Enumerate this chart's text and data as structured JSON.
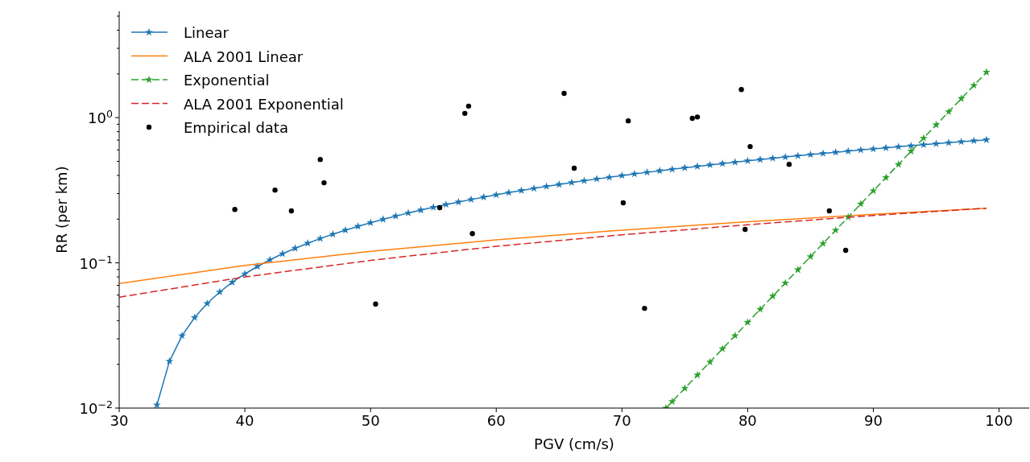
{
  "chart_data": {
    "type": "line",
    "xlabel": "PGV (cm/s)",
    "ylabel": "RR (per km)",
    "log": "y",
    "legend": "top left",
    "grid": false,
    "xlim": [
      30,
      102.4
    ],
    "xticks": [
      30,
      40,
      50,
      60,
      70,
      80,
      90,
      100
    ],
    "ylim": [
      0.01,
      5.4
    ],
    "yticks": [
      {
        "value": 0.01,
        "label": "10$^{−2}$"
      },
      {
        "value": 0.02,
        "label": null
      },
      {
        "value": 0.03,
        "label": null
      },
      {
        "value": 0.04,
        "label": null
      },
      {
        "value": 0.05,
        "label": null
      },
      {
        "value": 0.06,
        "label": null
      },
      {
        "value": 0.07,
        "label": null
      },
      {
        "value": 0.08,
        "label": null
      },
      {
        "value": 0.09,
        "label": null
      },
      {
        "value": 0.1,
        "label": "10$^{−1}$"
      },
      {
        "value": 0.2,
        "label": null
      },
      {
        "value": 0.3,
        "label": null
      },
      {
        "value": 0.4,
        "label": null
      },
      {
        "value": 0.5,
        "label": null
      },
      {
        "value": 0.6,
        "label": null
      },
      {
        "value": 0.7,
        "label": null
      },
      {
        "value": 0.8,
        "label": null
      },
      {
        "value": 0.9,
        "label": null
      },
      {
        "value": 1,
        "label": "10$^{0}$"
      },
      {
        "value": 2,
        "label": null
      },
      {
        "value": 3,
        "label": null
      },
      {
        "value": 4,
        "label": null
      },
      {
        "value": 5,
        "label": null
      }
    ],
    "series": [
      {
        "name": "Linear",
        "type": "line",
        "color": "#1f77b4",
        "marker": "star",
        "line_style": "solid",
        "x": [
          33,
          34,
          35,
          36,
          37,
          38,
          39,
          40,
          41,
          42,
          43,
          44,
          45,
          46,
          47,
          48,
          49,
          50,
          51,
          52,
          53,
          54,
          55,
          56,
          57,
          58,
          59,
          60,
          61,
          62,
          63,
          64,
          65,
          66,
          67,
          68,
          69,
          70,
          71,
          72,
          73,
          74,
          75,
          76,
          77,
          78,
          79,
          80,
          81,
          82,
          83,
          84,
          85,
          86,
          87,
          88,
          89,
          90,
          91,
          92,
          93,
          94,
          95,
          96,
          97,
          98,
          99
        ],
        "values": [
          0.0105,
          0.021,
          0.0315,
          0.042,
          0.0525,
          0.063,
          0.0735,
          0.084,
          0.0945,
          0.105,
          0.1155,
          0.126,
          0.1365,
          0.147,
          0.1575,
          0.168,
          0.1785,
          0.189,
          0.1995,
          0.21,
          0.2205,
          0.231,
          0.2415,
          0.252,
          0.2625,
          0.273,
          0.2835,
          0.294,
          0.3045,
          0.315,
          0.3255,
          0.336,
          0.3465,
          0.357,
          0.3675,
          0.378,
          0.3885,
          0.399,
          0.4095,
          0.42,
          0.4305,
          0.441,
          0.4515,
          0.462,
          0.4725,
          0.483,
          0.4935,
          0.504,
          0.5145,
          0.525,
          0.5355,
          0.546,
          0.5565,
          0.567,
          0.5775,
          0.588,
          0.5985,
          0.609,
          0.6195,
          0.63,
          0.6405,
          0.651,
          0.6615,
          0.672,
          0.6825,
          0.693,
          0.7035
        ]
      },
      {
        "name": "ALA 2001 Linear",
        "type": "line",
        "color": "#ff7f0e",
        "marker": "none",
        "line_style": "solid",
        "x": [
          30,
          40,
          50,
          60,
          70,
          80,
          90,
          99
        ],
        "values": [
          0.072,
          0.096,
          0.12,
          0.144,
          0.168,
          0.192,
          0.216,
          0.2376
        ]
      },
      {
        "name": "Exponential",
        "type": "line",
        "color": "#2ca02c",
        "marker": "star",
        "line_style": "dashed",
        "x": [
          73.5,
          74,
          75,
          76,
          77,
          78,
          79,
          80,
          81,
          82,
          83,
          84,
          85,
          86,
          87,
          88,
          89,
          90,
          91,
          92,
          93,
          94,
          95,
          96,
          97,
          98,
          99
        ],
        "values": [
          0.01,
          0.0111,
          0.01368,
          0.01686,
          0.02077,
          0.02559,
          0.03153,
          0.03886,
          0.04788,
          0.059,
          0.0727,
          0.08958,
          0.1104,
          0.136,
          0.1676,
          0.2065,
          0.2545,
          0.3136,
          0.3864,
          0.4762,
          0.5868,
          0.7231,
          0.8913,
          1.098,
          1.353,
          1.668,
          2.055
        ]
      },
      {
        "name": "ALA 2001 Exponential",
        "type": "line",
        "color": "#d62728",
        "marker": "none",
        "line_style": "dashed",
        "x": [
          30,
          40,
          50,
          60,
          70,
          80,
          90,
          99
        ],
        "values": [
          0.058,
          0.08,
          0.104,
          0.13,
          0.156,
          0.183,
          0.212,
          0.238
        ]
      },
      {
        "name": "Empirical data",
        "type": "scatter",
        "color": "#000000",
        "marker": "circle",
        "x": [
          39.2,
          42.4,
          43.7,
          46,
          46.3,
          50.4,
          55.5,
          57.5,
          57.8,
          58.1,
          65.4,
          66.2,
          70.1,
          70.5,
          71.8,
          75.6,
          76,
          79.5,
          79.8,
          80.2,
          83.3,
          86.5,
          87.8
        ],
        "values": [
          0.233,
          0.317,
          0.228,
          0.515,
          0.356,
          0.052,
          0.24,
          1.07,
          1.2,
          0.159,
          1.47,
          0.448,
          0.259,
          0.95,
          0.0486,
          0.99,
          1.01,
          1.56,
          0.17,
          0.632,
          0.477,
          0.228,
          0.122
        ]
      }
    ]
  }
}
